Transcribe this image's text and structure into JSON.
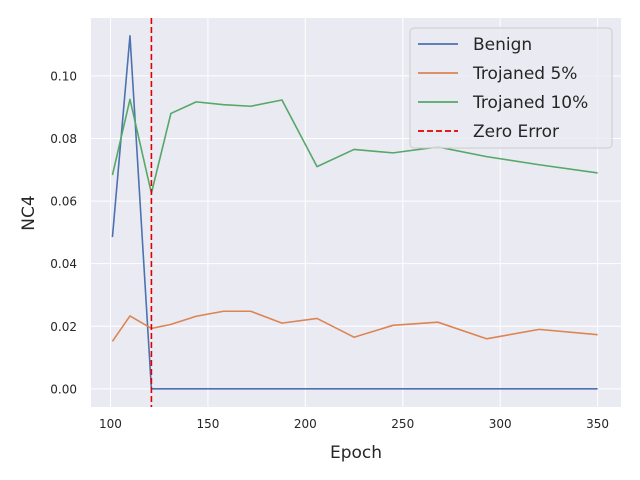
{
  "chart_data": {
    "type": "line",
    "xlabel": "Epoch",
    "ylabel": "NC4",
    "xlim": [
      90,
      362
    ],
    "ylim": [
      -0.0058,
      0.1185
    ],
    "xticks": [
      100,
      150,
      200,
      250,
      300,
      350
    ],
    "yticks": [
      0.0,
      0.02,
      0.04,
      0.06,
      0.08,
      0.1
    ],
    "xtick_labels": [
      "100",
      "150",
      "200",
      "250",
      "300",
      "350"
    ],
    "ytick_labels": [
      "0.00",
      "0.02",
      "0.04",
      "0.06",
      "0.08",
      "0.10"
    ],
    "grid": true,
    "legend_position": "top-right",
    "series": [
      {
        "name": "Benign",
        "color": "#4c72b0",
        "x": [
          101,
          110,
          121,
          131,
          144,
          158,
          172,
          188,
          206,
          225,
          245,
          268,
          293,
          320,
          350
        ],
        "y": [
          0.0485,
          0.1128,
          0.0,
          0.0,
          0.0,
          0.0,
          0.0,
          0.0,
          0.0,
          0.0,
          0.0,
          0.0,
          0.0,
          0.0,
          0.0
        ]
      },
      {
        "name": "Trojaned 5%",
        "color": "#dd8452",
        "x": [
          101,
          110,
          121,
          131,
          144,
          158,
          172,
          188,
          206,
          225,
          245,
          268,
          293,
          320,
          350
        ],
        "y": [
          0.0152,
          0.0233,
          0.0193,
          0.0206,
          0.0232,
          0.0248,
          0.0248,
          0.021,
          0.0225,
          0.0165,
          0.0203,
          0.0213,
          0.016,
          0.019,
          0.0173
        ]
      },
      {
        "name": "Trojaned 10%",
        "color": "#55a868",
        "x": [
          101,
          110,
          121,
          131,
          144,
          158,
          172,
          188,
          206,
          225,
          245,
          268,
          293,
          320,
          350
        ],
        "y": [
          0.0683,
          0.0925,
          0.0625,
          0.088,
          0.0917,
          0.0908,
          0.0903,
          0.0923,
          0.071,
          0.0765,
          0.0754,
          0.0773,
          0.0742,
          0.0716,
          0.069
        ]
      }
    ],
    "vline": {
      "name": "Zero Error",
      "x": 121,
      "color": "#e00000",
      "style": "dashed"
    }
  }
}
